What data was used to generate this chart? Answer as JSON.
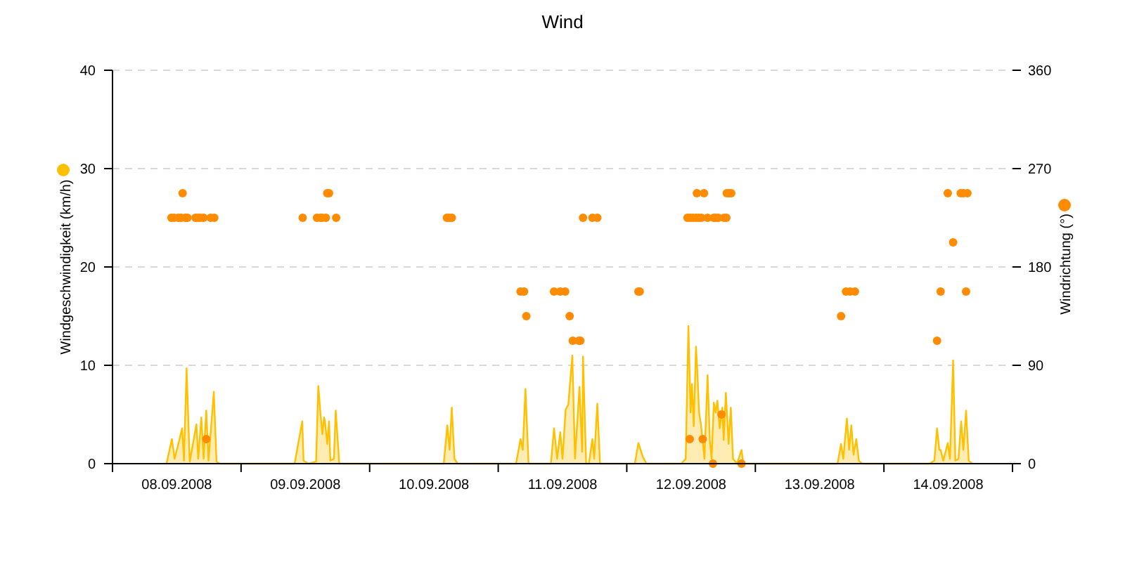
{
  "chart_data": {
    "type": "area",
    "title": "Wind",
    "ylabel": "Windgeschwindigkeit (km/h)",
    "y2label": "Windrichtung (°)",
    "xlim": [
      "2008-09-08T00:00",
      "2008-09-15T00:00"
    ],
    "xticks": [
      {
        "value": "2008-09-08T00:00",
        "label": null
      },
      {
        "value": "2008-09-08T12:00",
        "label": "08.09.2008"
      },
      {
        "value": "2008-09-09T00:00",
        "label": null
      },
      {
        "value": "2008-09-09T12:00",
        "label": "09.09.2008"
      },
      {
        "value": "2008-09-10T00:00",
        "label": null
      },
      {
        "value": "2008-09-10T12:00",
        "label": "10.09.2008"
      },
      {
        "value": "2008-09-11T00:00",
        "label": null
      },
      {
        "value": "2008-09-11T12:00",
        "label": "11.09.2008"
      },
      {
        "value": "2008-09-12T00:00",
        "label": null
      },
      {
        "value": "2008-09-12T12:00",
        "label": "12.09.2008"
      },
      {
        "value": "2008-09-13T00:00",
        "label": null
      },
      {
        "value": "2008-09-13T12:00",
        "label": "13.09.2008"
      },
      {
        "value": "2008-09-14T00:00",
        "label": null
      },
      {
        "value": "2008-09-14T12:00",
        "label": "14.09.2008"
      },
      {
        "value": "2008-09-15T00:00",
        "label": null
      }
    ],
    "ylim": [
      0,
      40
    ],
    "yticks": [
      0,
      10,
      20,
      30,
      40
    ],
    "y2lim": [
      0,
      360
    ],
    "y2ticks": [
      0,
      90,
      180,
      270,
      360
    ],
    "grid": "y",
    "series": [
      {
        "color": "#ffc000",
        "x": [
          "2008-09-08T10:05",
          "2008-09-08T11:05",
          "2008-09-08T11:35",
          "2008-09-08T12:15",
          "2008-09-08T13:00",
          "2008-09-08T13:20",
          "2008-09-08T13:50",
          "2008-09-08T14:25",
          "2008-09-08T15:40",
          "2008-09-08T16:00",
          "2008-09-08T16:35",
          "2008-09-08T17:00",
          "2008-09-08T17:30",
          "2008-09-08T17:55",
          "2008-09-08T18:55",
          "2008-09-08T19:25",
          "2008-09-08T20:05",
          "2008-09-09T10:00",
          "2008-09-09T11:25",
          "2008-09-09T11:40",
          "2008-09-09T12:35",
          "2008-09-09T14:00",
          "2008-09-09T14:25",
          "2008-09-09T14:50",
          "2008-09-09T15:10",
          "2008-09-09T15:30",
          "2008-09-09T15:40",
          "2008-09-09T16:05",
          "2008-09-09T16:25",
          "2008-09-09T16:40",
          "2008-09-09T17:20",
          "2008-09-09T17:40",
          "2008-09-09T18:20",
          "2008-09-10T13:50",
          "2008-09-10T14:30",
          "2008-09-10T14:55",
          "2008-09-10T15:20",
          "2008-09-10T15:50",
          "2008-09-10T16:25",
          "2008-09-11T03:20",
          "2008-09-11T04:10",
          "2008-09-11T04:35",
          "2008-09-11T05:05",
          "2008-09-11T05:40",
          "2008-09-11T06:50",
          "2008-09-11T09:50",
          "2008-09-11T10:25",
          "2008-09-11T11:00",
          "2008-09-11T11:35",
          "2008-09-11T12:00",
          "2008-09-11T12:35",
          "2008-09-11T13:05",
          "2008-09-11T13:50",
          "2008-09-11T14:20",
          "2008-09-11T15:10",
          "2008-09-11T15:40",
          "2008-09-11T15:50",
          "2008-09-11T16:25",
          "2008-09-11T16:55",
          "2008-09-11T17:35",
          "2008-09-11T17:55",
          "2008-09-11T18:30",
          "2008-09-11T19:00",
          "2008-09-11T19:50",
          "2008-09-12T01:30",
          "2008-09-12T02:10",
          "2008-09-12T02:35",
          "2008-09-12T03:00",
          "2008-09-12T03:40",
          "2008-09-12T10:10",
          "2008-09-12T11:00",
          "2008-09-12T11:30",
          "2008-09-12T11:55",
          "2008-09-12T12:10",
          "2008-09-12T12:30",
          "2008-09-12T12:55",
          "2008-09-12T13:10",
          "2008-09-12T13:30",
          "2008-09-12T13:50",
          "2008-09-12T14:10",
          "2008-09-12T14:30",
          "2008-09-12T15:05",
          "2008-09-12T15:30",
          "2008-09-12T15:50",
          "2008-09-12T16:15",
          "2008-09-12T16:35",
          "2008-09-12T16:55",
          "2008-09-12T17:20",
          "2008-09-12T17:50",
          "2008-09-12T18:05",
          "2008-09-12T18:30",
          "2008-09-12T19:00",
          "2008-09-12T19:25",
          "2008-09-12T19:50",
          "2008-09-12T20:35",
          "2008-09-12T21:25",
          "2008-09-12T21:45",
          "2008-09-12T22:25",
          "2008-09-13T15:20",
          "2008-09-13T16:00",
          "2008-09-13T16:25",
          "2008-09-13T17:05",
          "2008-09-13T17:30",
          "2008-09-13T17:55",
          "2008-09-13T18:20",
          "2008-09-13T18:50",
          "2008-09-13T19:20",
          "2008-09-13T19:55",
          "2008-09-14T08:30",
          "2008-09-14T09:25",
          "2008-09-14T09:55",
          "2008-09-14T10:20",
          "2008-09-14T10:35",
          "2008-09-14T11:05",
          "2008-09-14T11:55",
          "2008-09-14T12:20",
          "2008-09-14T12:55",
          "2008-09-14T13:20",
          "2008-09-14T13:55",
          "2008-09-14T14:25",
          "2008-09-14T14:50",
          "2008-09-14T15:20",
          "2008-09-14T15:50",
          "2008-09-14T16:30"
        ],
        "values": [
          0,
          2.5,
          0.5,
          1.9,
          3.6,
          0.3,
          9.7,
          0.2,
          4.0,
          0.5,
          4.7,
          0.5,
          5.4,
          0.3,
          7.3,
          0.2,
          0,
          0,
          4.3,
          0.3,
          0,
          0.2,
          7.9,
          5.0,
          3.0,
          4.7,
          4.3,
          2.0,
          4.3,
          0.3,
          0.5,
          5.4,
          0,
          0,
          3.9,
          1.4,
          5.7,
          0.5,
          0,
          0,
          2.5,
          1.4,
          7.6,
          0,
          0,
          0,
          3.6,
          0.5,
          3.2,
          0.5,
          5.5,
          6.0,
          11.0,
          0.5,
          7.8,
          1.2,
          10.9,
          0,
          0,
          2.5,
          0.5,
          6.1,
          0,
          0,
          0,
          2.1,
          1.4,
          0.7,
          0,
          0,
          0.5,
          14.0,
          5.2,
          8.1,
          3.8,
          11.9,
          9.5,
          5.2,
          4.0,
          2.4,
          0.5,
          9.0,
          2.4,
          0.5,
          6.2,
          5.2,
          6.4,
          3.6,
          5.7,
          2.4,
          7.2,
          2.0,
          5.7,
          0.5,
          0,
          1.4,
          0,
          0,
          0,
          2.0,
          0.5,
          4.6,
          1.4,
          3.9,
          0.9,
          2.5,
          0.3,
          0,
          0,
          0.3,
          3.6,
          1.4,
          1.4,
          0.3,
          2.1,
          0.5,
          10.5,
          0.3,
          0.5,
          4.3,
          1.4,
          5.4,
          0.3,
          0
        ]
      },
      {
        "type": "scatter",
        "axis": "y2",
        "marker": "circle",
        "color": "#ff8c00",
        "x": [
          "2008-09-08T11:00",
          "2008-09-08T11:30",
          "2008-09-08T12:15",
          "2008-09-08T12:50",
          "2008-09-08T13:05",
          "2008-09-08T13:35",
          "2008-09-08T14:00",
          "2008-09-08T15:30",
          "2008-09-08T16:00",
          "2008-09-08T16:25",
          "2008-09-08T17:00",
          "2008-09-08T17:30",
          "2008-09-08T18:20",
          "2008-09-08T19:00",
          "2008-09-09T11:30",
          "2008-09-09T14:10",
          "2008-09-09T14:50",
          "2008-09-09T15:10",
          "2008-09-09T15:50",
          "2008-09-09T16:05",
          "2008-09-09T16:25",
          "2008-09-09T17:45",
          "2008-09-10T14:25",
          "2008-09-10T14:50",
          "2008-09-10T15:20",
          "2008-09-11T04:10",
          "2008-09-11T04:50",
          "2008-09-11T05:15",
          "2008-09-11T10:25",
          "2008-09-11T11:35",
          "2008-09-11T12:30",
          "2008-09-11T13:20",
          "2008-09-11T13:55",
          "2008-09-11T15:05",
          "2008-09-11T15:20",
          "2008-09-11T15:50",
          "2008-09-11T17:35",
          "2008-09-11T18:30",
          "2008-09-12T02:10",
          "2008-09-12T02:25",
          "2008-09-12T11:20",
          "2008-09-12T11:45",
          "2008-09-12T11:50",
          "2008-09-12T12:20",
          "2008-09-12T12:55",
          "2008-09-12T13:05",
          "2008-09-12T13:25",
          "2008-09-12T13:55",
          "2008-09-12T14:10",
          "2008-09-12T14:25",
          "2008-09-12T15:05",
          "2008-09-12T16:05",
          "2008-09-12T16:15",
          "2008-09-12T16:40",
          "2008-09-12T17:05",
          "2008-09-12T17:40",
          "2008-09-12T18:10",
          "2008-09-12T18:35",
          "2008-09-12T18:40",
          "2008-09-12T19:05",
          "2008-09-12T19:30",
          "2008-09-12T21:25",
          "2008-09-13T16:00",
          "2008-09-13T16:55",
          "2008-09-13T17:40",
          "2008-09-13T18:35",
          "2008-09-14T09:55",
          "2008-09-14T10:35",
          "2008-09-14T11:55",
          "2008-09-14T12:55",
          "2008-09-14T14:20",
          "2008-09-14T14:50",
          "2008-09-14T15:20",
          "2008-09-14T15:35"
        ],
        "values": [
          225,
          225,
          225,
          225,
          247.5,
          225,
          225,
          225,
          225,
          225,
          225,
          22.5,
          225,
          225,
          225,
          225,
          225,
          225,
          225,
          247.5,
          247.5,
          225,
          225,
          225,
          225,
          157.5,
          157.5,
          135,
          157.5,
          157.5,
          157.5,
          135,
          112.5,
          112.5,
          112.5,
          225,
          225,
          225,
          157.5,
          157.5,
          225,
          22.5,
          225,
          225,
          225,
          247.5,
          225,
          225,
          22.5,
          247.5,
          225,
          0,
          225,
          225,
          225,
          45,
          225,
          225,
          247.5,
          247.5,
          247.5,
          0,
          135,
          157.5,
          157.5,
          157.5,
          112.5,
          157.5,
          247.5,
          202.5,
          247.5,
          247.5,
          157.5,
          247.5
        ]
      }
    ]
  }
}
